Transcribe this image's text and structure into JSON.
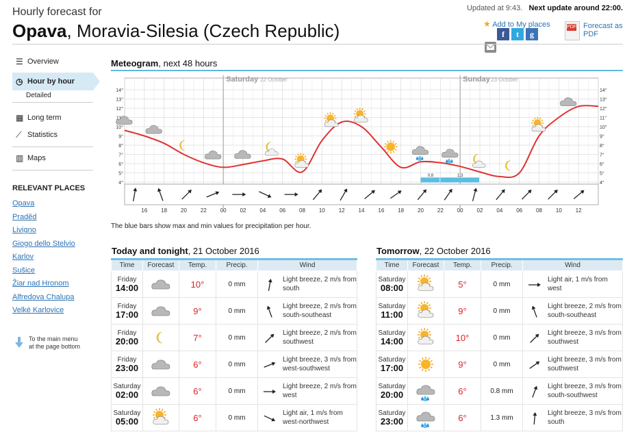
{
  "header": {
    "subtitle": "Hourly forecast for",
    "place": "Opava",
    "region": ", Moravia-Silesia (Czech Republic)",
    "updated": "Updated at 9:43.",
    "next_update": "Next update around 22:00.",
    "add_to_places": "Add to My places",
    "pdf_line1": "Forecast as",
    "pdf_line2": "PDF",
    "social": [
      "f",
      "t",
      "g"
    ]
  },
  "sidebar": {
    "overview": "Overview",
    "hour_by_hour": "Hour by hour",
    "detailed": "Detailed",
    "long_term": "Long term",
    "statistics": "Statistics",
    "maps": "Maps",
    "relevant_places_title": "RELEVANT PLACES",
    "places": [
      "Opava",
      "Praděd",
      "Livigno",
      "Giogo dello Stelvio",
      "Karlov",
      "Sušice",
      "Žiar nad Hronom",
      "Alfredova Chalupa",
      "Velké Karlovice"
    ],
    "to_main_menu_1": "To the main menu",
    "to_main_menu_2": "at the page bottom"
  },
  "meteogram": {
    "title": "Meteogram",
    "subtitle": ", next 48 hours",
    "day1": "Saturday",
    "day1_date": "22 October",
    "day2": "Sunday",
    "day2_date": "23 October",
    "note": "The blue bars show max and min values for precipitation per hour."
  },
  "chart_data": {
    "type": "line",
    "ylim": [
      4,
      14
    ],
    "y_ticks": [
      "4°",
      "5°",
      "6°",
      "7°",
      "8°",
      "9°",
      "10°",
      "11°",
      "12°",
      "13°",
      "14°"
    ],
    "x_tick_labels": [
      "16",
      "18",
      "20",
      "22",
      "00",
      "02",
      "04",
      "06",
      "08",
      "10",
      "12",
      "14",
      "16",
      "18",
      "20",
      "22",
      "00",
      "02",
      "04",
      "06",
      "08",
      "10",
      "12"
    ],
    "series": [
      {
        "x_hours": [
          14,
          16,
          18,
          20,
          22,
          24,
          26,
          28,
          30,
          32,
          34,
          36,
          38,
          40,
          42,
          44,
          46,
          48,
          50,
          52,
          54,
          56,
          58,
          60,
          62
        ],
        "values": [
          9.6,
          9.0,
          8.2,
          7.0,
          6.1,
          5.6,
          5.9,
          6.3,
          6.5,
          5.1,
          8.5,
          10.5,
          10.0,
          7.8,
          5.6,
          6.2,
          6.1,
          5.7,
          5.1,
          4.6,
          5.0,
          9.0,
          11.0,
          12.2,
          12.2
        ],
        "color": "#e03030"
      }
    ],
    "precip_labels": [
      "0.8",
      "1.3"
    ],
    "precip_color": "#5bbde4",
    "symbols": [
      "cloud",
      "cloud",
      "moon",
      "cloud",
      "cloud",
      "moon-cloud",
      "sun-cloud",
      "sun-cloud",
      "sun-cloud",
      "sun",
      "rain",
      "rain",
      "moon-cloud",
      "moon",
      "sun-cloud",
      "cloud"
    ]
  },
  "today": {
    "title": "Today and tonight",
    "date": ", 21 October 2016",
    "headers": [
      "Time",
      "Forecast",
      "Temp.",
      "Precip.",
      "Wind"
    ],
    "rows": [
      {
        "day": "Friday",
        "hour": "14:00",
        "icon": "cloud",
        "temp": "10°",
        "precip": "0 mm",
        "wind_dir": 10,
        "wind": "Light breeze, 2 m/s from south"
      },
      {
        "day": "Friday",
        "hour": "17:00",
        "icon": "cloud",
        "temp": "9°",
        "precip": "0 mm",
        "wind_dir": -20,
        "wind": "Light breeze, 2 m/s from south-southeast"
      },
      {
        "day": "Friday",
        "hour": "20:00",
        "icon": "moon",
        "temp": "7°",
        "precip": "0 mm",
        "wind_dir": 45,
        "wind": "Light breeze, 2 m/s from southwest"
      },
      {
        "day": "Friday",
        "hour": "23:00",
        "icon": "cloud",
        "temp": "6°",
        "precip": "0 mm",
        "wind_dir": 68,
        "wind": "Light breeze, 3 m/s from west-southwest"
      },
      {
        "day": "Saturday",
        "hour": "02:00",
        "icon": "cloud",
        "temp": "6°",
        "precip": "0 mm",
        "wind_dir": 90,
        "wind": "Light breeze, 2 m/s from west"
      },
      {
        "day": "Saturday",
        "hour": "05:00",
        "icon": "sun-cloud",
        "temp": "6°",
        "precip": "0 mm",
        "wind_dir": 115,
        "wind": "Light air, 1 m/s from west-northwest"
      }
    ]
  },
  "tomorrow": {
    "title": "Tomorrow",
    "date": ", 22 October 2016",
    "headers": [
      "Time",
      "Forecast",
      "Temp.",
      "Precip.",
      "Wind"
    ],
    "rows": [
      {
        "day": "Saturday",
        "hour": "08:00",
        "icon": "sun-cloud",
        "temp": "5°",
        "precip": "0 mm",
        "wind_dir": 90,
        "wind": "Light air, 1 m/s from west"
      },
      {
        "day": "Saturday",
        "hour": "11:00",
        "icon": "sun-cloud",
        "temp": "9°",
        "precip": "0 mm",
        "wind_dir": -20,
        "wind": "Light breeze, 2 m/s from south-southeast"
      },
      {
        "day": "Saturday",
        "hour": "14:00",
        "icon": "sun-cloud",
        "temp": "10°",
        "precip": "0 mm",
        "wind_dir": 45,
        "wind": "Light breeze, 3 m/s from southwest"
      },
      {
        "day": "Saturday",
        "hour": "17:00",
        "icon": "sun",
        "temp": "9°",
        "precip": "0 mm",
        "wind_dir": 55,
        "wind": "Light breeze, 3 m/s from southwest"
      },
      {
        "day": "Saturday",
        "hour": "20:00",
        "icon": "rain",
        "temp": "6°",
        "precip": "0.8 mm",
        "wind_dir": 20,
        "wind": "Light breeze, 3 m/s from south-southwest"
      },
      {
        "day": "Saturday",
        "hour": "23:00",
        "icon": "rain",
        "temp": "6°",
        "precip": "1.3 mm",
        "wind_dir": 5,
        "wind": "Light breeze, 3 m/s from south"
      }
    ]
  },
  "colors": {
    "accent": "#5fb7de",
    "link": "#2a72b5",
    "temp": "#dd2222",
    "curve": "#e03030"
  }
}
